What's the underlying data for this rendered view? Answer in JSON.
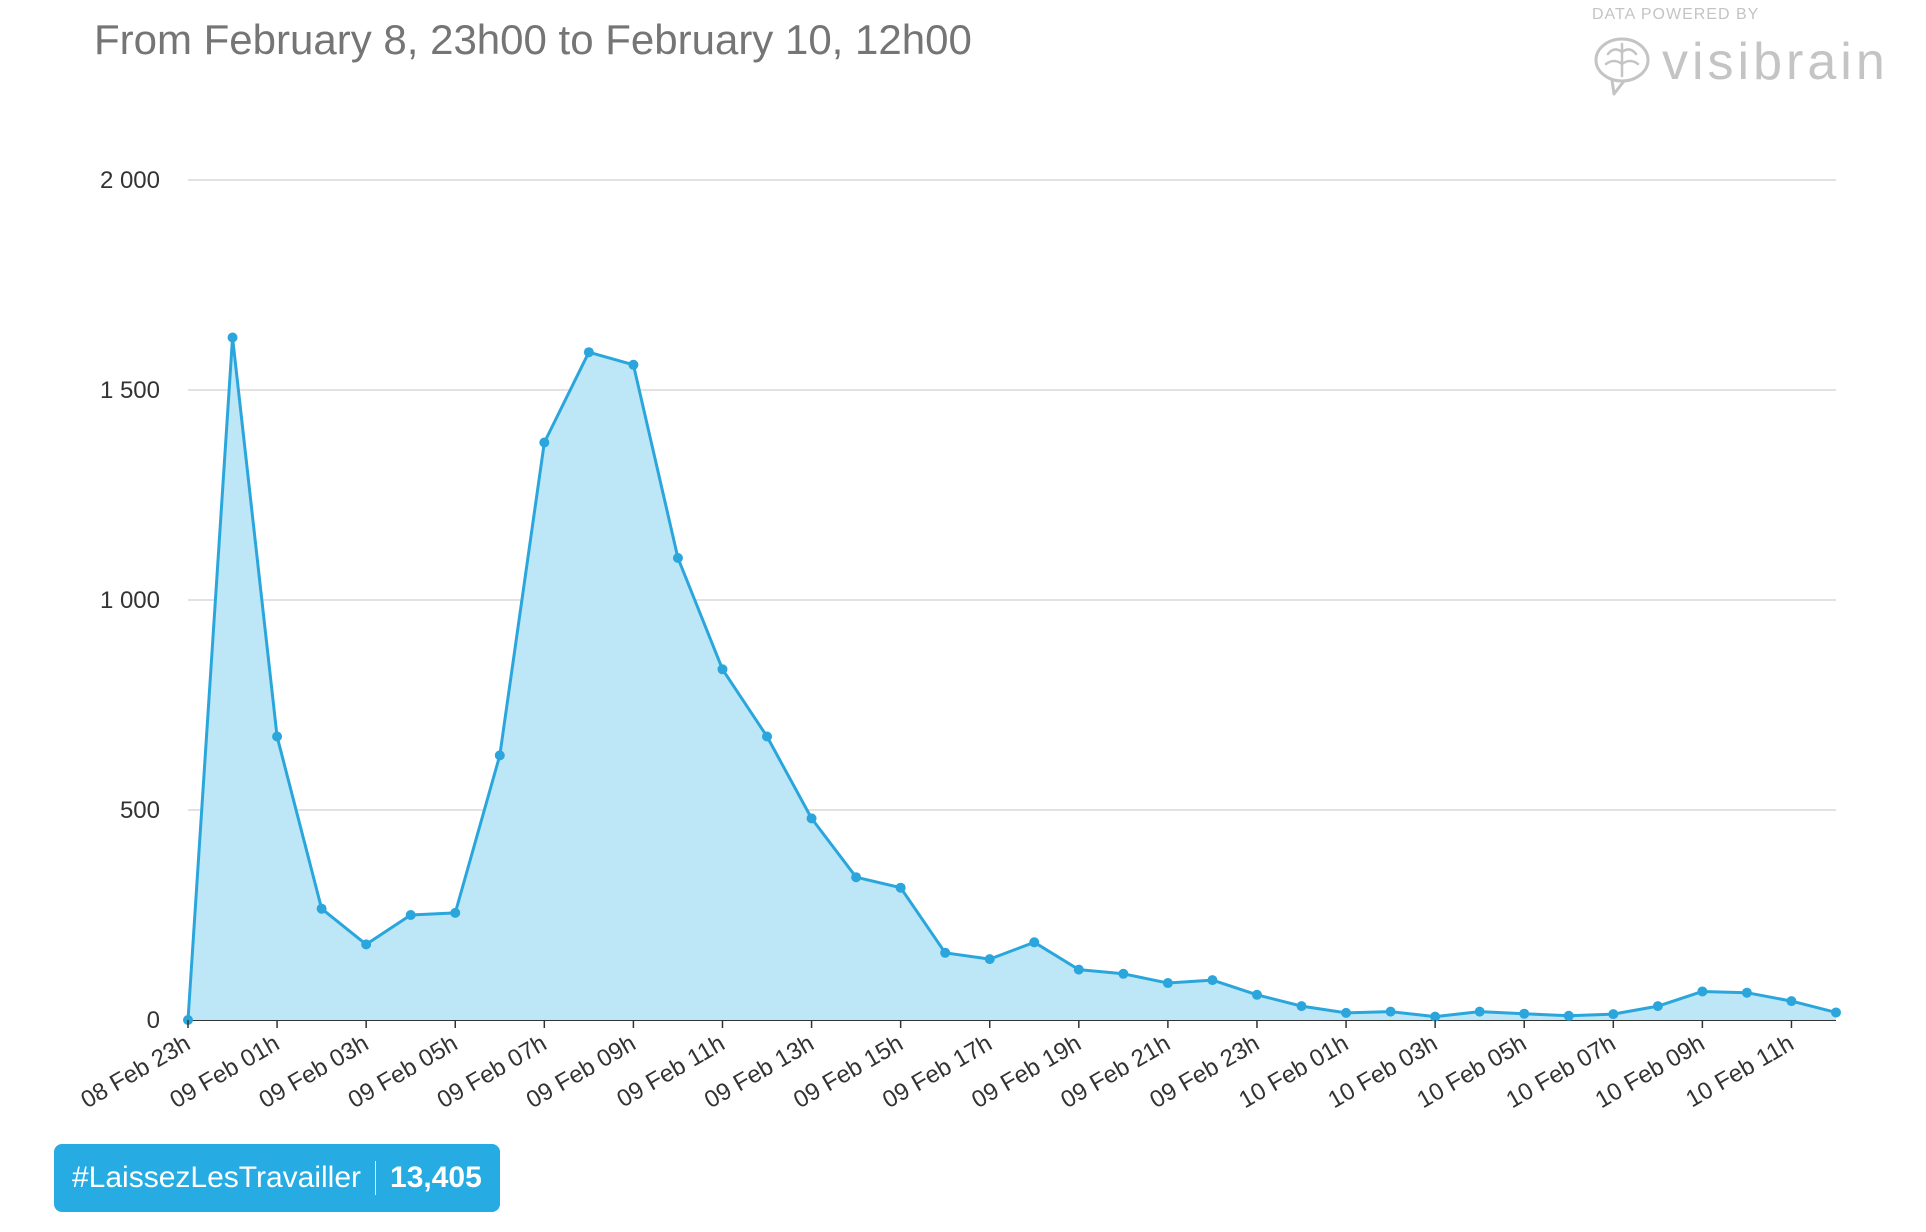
{
  "header": {
    "title": "From February 8, 23h00 to February 10, 12h00"
  },
  "branding": {
    "caption": "DATA POWERED BY",
    "name": "visibrain",
    "icon": "brain-logo-icon"
  },
  "badge": {
    "hashtag": "#LaissezLesTravailler",
    "count": "13,405"
  },
  "colors": {
    "line": "#2aa6dc",
    "fill": "#bde6f6",
    "grid": "#d8d8d8",
    "axis": "#333333",
    "badge": "#26abe2"
  },
  "chart_data": {
    "type": "area",
    "title": "",
    "xlabel": "",
    "ylabel": "",
    "ylim": [
      0,
      2000
    ],
    "yticks": [
      0,
      500,
      1000,
      1500,
      2000
    ],
    "ytick_labels": [
      "0",
      "500",
      "1 000",
      "1 500",
      "2 000"
    ],
    "grid": true,
    "legend": "none",
    "x_tick_labels": [
      "08 Feb 23h",
      "09 Feb 01h",
      "09 Feb 03h",
      "09 Feb 05h",
      "09 Feb 07h",
      "09 Feb 09h",
      "09 Feb 11h",
      "09 Feb 13h",
      "09 Feb 15h",
      "09 Feb 17h",
      "09 Feb 19h",
      "09 Feb 21h",
      "09 Feb 23h",
      "10 Feb 01h",
      "10 Feb 03h",
      "10 Feb 05h",
      "10 Feb 07h",
      "10 Feb 09h",
      "10 Feb 11h"
    ],
    "x": [
      "08 Feb 23h",
      "09 Feb 00h",
      "09 Feb 01h",
      "09 Feb 02h",
      "09 Feb 03h",
      "09 Feb 04h",
      "09 Feb 05h",
      "09 Feb 06h",
      "09 Feb 07h",
      "09 Feb 08h",
      "09 Feb 09h",
      "09 Feb 10h",
      "09 Feb 11h",
      "09 Feb 12h",
      "09 Feb 13h",
      "09 Feb 14h",
      "09 Feb 15h",
      "09 Feb 16h",
      "09 Feb 17h",
      "09 Feb 18h",
      "09 Feb 19h",
      "09 Feb 20h",
      "09 Feb 21h",
      "09 Feb 22h",
      "09 Feb 23h",
      "10 Feb 00h",
      "10 Feb 01h",
      "10 Feb 02h",
      "10 Feb 03h",
      "10 Feb 04h",
      "10 Feb 05h",
      "10 Feb 06h",
      "10 Feb 07h",
      "10 Feb 08h",
      "10 Feb 09h",
      "10 Feb 10h",
      "10 Feb 11h",
      "10 Feb 12h"
    ],
    "series": [
      {
        "values": [
          0,
          1625,
          675,
          265,
          180,
          250,
          255,
          630,
          1375,
          1590,
          1560,
          1100,
          835,
          675,
          480,
          340,
          315,
          160,
          145,
          185,
          120,
          110,
          88,
          95,
          60,
          33,
          17,
          20,
          8,
          20,
          15,
          10,
          14,
          33,
          68,
          65,
          45,
          18
        ]
      }
    ]
  }
}
